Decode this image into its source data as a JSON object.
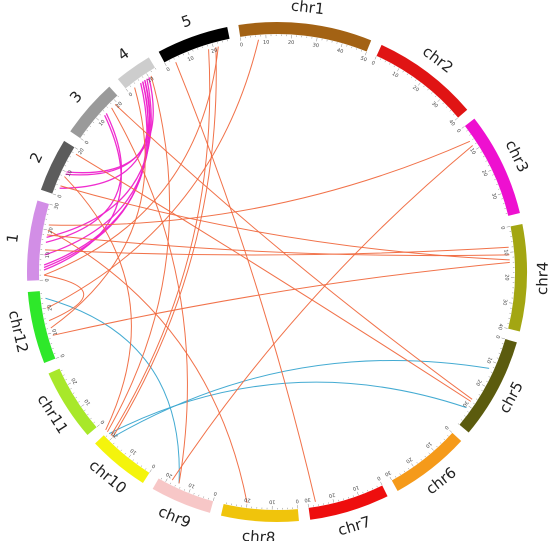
{
  "chart_data": {
    "type": "circos",
    "title": "",
    "chromosomes": [
      {
        "id": "s1",
        "label": "1",
        "length": 30,
        "color": "#d28ee6"
      },
      {
        "id": "s2",
        "label": "2",
        "length": 20,
        "color": "#5c5c5c"
      },
      {
        "id": "s3",
        "label": "3",
        "length": 22,
        "color": "#9a9a9a"
      },
      {
        "id": "s4",
        "label": "4",
        "length": 14,
        "color": "#cdcdcd"
      },
      {
        "id": "s5",
        "label": "5",
        "length": 27,
        "color": "#000000"
      },
      {
        "id": "c1",
        "label": "chr1",
        "length": 50,
        "color": "#a36214"
      },
      {
        "id": "c2",
        "label": "chr2",
        "length": 40,
        "color": "#e01414"
      },
      {
        "id": "c3",
        "label": "chr3",
        "length": 39,
        "color": "#ee10d0"
      },
      {
        "id": "c4",
        "label": "chr4",
        "length": 40,
        "color": "#a3a612"
      },
      {
        "id": "c5",
        "label": "chr5",
        "length": 38,
        "color": "#5b5b0e"
      },
      {
        "id": "c6",
        "label": "chr6",
        "length": 30,
        "color": "#f59a1a"
      },
      {
        "id": "c7",
        "label": "chr7",
        "length": 30,
        "color": "#ee0e0e"
      },
      {
        "id": "c8",
        "label": "chr8",
        "length": 29,
        "color": "#f0c40c"
      },
      {
        "id": "c9",
        "label": "chr9",
        "length": 23,
        "color": "#f7c7c7"
      },
      {
        "id": "c10",
        "label": "chr10",
        "length": 23,
        "color": "#f4f40c"
      },
      {
        "id": "c11",
        "label": "chr11",
        "length": 27,
        "color": "#a8e82a"
      },
      {
        "id": "c12",
        "label": "chr12",
        "length": 27,
        "color": "#2ee82a"
      }
    ],
    "tick_step": 10,
    "link_colors": {
      "magenta": "#ee22cc",
      "orange": "#f06a40",
      "blue": "#3aa6d0"
    },
    "links": [
      {
        "a": [
          "s1",
          4
        ],
        "b": [
          "s3",
          13
        ],
        "color": "magenta"
      },
      {
        "a": [
          "s1",
          5
        ],
        "b": [
          "s4",
          6
        ],
        "color": "magenta"
      },
      {
        "a": [
          "s1",
          6
        ],
        "b": [
          "s4",
          7
        ],
        "color": "magenta"
      },
      {
        "a": [
          "s1",
          10
        ],
        "b": [
          "s4",
          8
        ],
        "color": "magenta"
      },
      {
        "a": [
          "s1",
          15
        ],
        "b": [
          "s3",
          14
        ],
        "color": "magenta"
      },
      {
        "a": [
          "s1",
          17
        ],
        "b": [
          "s4",
          9
        ],
        "color": "magenta"
      },
      {
        "a": [
          "s2",
          3
        ],
        "b": [
          "s4",
          7
        ],
        "color": "magenta"
      },
      {
        "a": [
          "s2",
          9
        ],
        "b": [
          "s4",
          8
        ],
        "color": "magenta"
      },
      {
        "a": [
          "s2",
          10
        ],
        "b": [
          "s4",
          10
        ],
        "color": "magenta"
      },
      {
        "a": [
          "c12",
          24
        ],
        "b": [
          "c9",
          15
        ],
        "color": "blue"
      },
      {
        "a": [
          "c10",
          22
        ],
        "b": [
          "c5",
          31
        ],
        "color": "blue"
      },
      {
        "a": [
          "c10",
          20
        ],
        "b": [
          "c5",
          13
        ],
        "color": "blue"
      },
      {
        "a": [
          "c12",
          15
        ],
        "b": [
          "s1",
          2
        ],
        "color": "orange"
      },
      {
        "a": [
          "c12",
          12
        ],
        "b": [
          "s4",
          3
        ],
        "color": "orange"
      },
      {
        "a": [
          "c12",
          9
        ],
        "b": [
          "c4",
          14
        ],
        "color": "orange"
      },
      {
        "a": [
          "s1",
          2
        ],
        "b": [
          "s5",
          22
        ],
        "color": "orange"
      },
      {
        "a": [
          "s1",
          12
        ],
        "b": [
          "c4",
          8
        ],
        "color": "orange"
      },
      {
        "a": [
          "s1",
          18
        ],
        "b": [
          "c4",
          11
        ],
        "color": "orange"
      },
      {
        "a": [
          "s1",
          22
        ],
        "b": [
          "c3",
          6
        ],
        "color": "orange"
      },
      {
        "a": [
          "s2",
          4
        ],
        "b": [
          "c4",
          13
        ],
        "color": "orange"
      },
      {
        "a": [
          "s2",
          8
        ],
        "b": [
          "c10",
          24
        ],
        "color": "orange"
      },
      {
        "a": [
          "s2",
          18
        ],
        "b": [
          "c5",
          28
        ],
        "color": "orange"
      },
      {
        "a": [
          "s3",
          17
        ],
        "b": [
          "c9",
          15
        ],
        "color": "orange"
      },
      {
        "a": [
          "s3",
          19
        ],
        "b": [
          "c5",
          27
        ],
        "color": "orange"
      },
      {
        "a": [
          "s4",
          11
        ],
        "b": [
          "c10",
          23
        ],
        "color": "orange"
      },
      {
        "a": [
          "s5",
          4
        ],
        "b": [
          "c7",
          27
        ],
        "color": "orange"
      },
      {
        "a": [
          "s5",
          18
        ],
        "b": [
          "c10",
          21
        ],
        "color": "orange"
      },
      {
        "a": [
          "s5",
          21
        ],
        "b": [
          "c10",
          20
        ],
        "color": "orange"
      },
      {
        "a": [
          "c1",
          7
        ],
        "b": [
          "c12",
          20
        ],
        "color": "orange"
      },
      {
        "a": [
          "c9",
          18
        ],
        "b": [
          "c3",
          8
        ],
        "color": "orange"
      },
      {
        "a": [
          "c8",
          20
        ],
        "b": [
          "s1",
          20
        ],
        "color": "orange"
      }
    ]
  }
}
